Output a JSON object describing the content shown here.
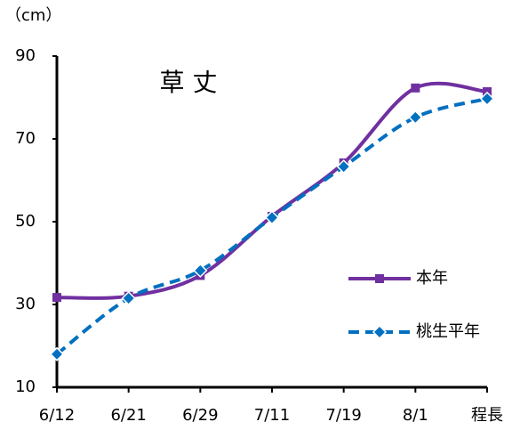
{
  "chart_data": {
    "type": "line",
    "title": "草 丈",
    "y_label": "（cm）",
    "categories": [
      "6/12",
      "6/21",
      "6/29",
      "7/11",
      "7/19",
      "8/1",
      "程長"
    ],
    "series": [
      {
        "name": "本年",
        "color": "#7030a0",
        "marker": "square",
        "dashed": false,
        "values": [
          31.7,
          32,
          37,
          51.3,
          64.2,
          82.3,
          81.4
        ]
      },
      {
        "name": "桃生平年",
        "color": "#0070c0",
        "marker": "diamond",
        "dashed": true,
        "values": [
          18,
          31.5,
          38.2,
          51,
          63.3,
          75.2,
          79.7
        ]
      }
    ],
    "ylim": [
      10,
      90
    ],
    "yticks": [
      10,
      30,
      50,
      70,
      90
    ],
    "smooth": true,
    "legend": "right"
  }
}
